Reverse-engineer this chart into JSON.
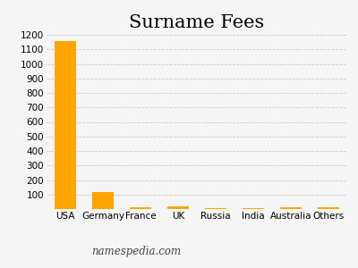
{
  "title": "Surname Fees",
  "categories": [
    "USA",
    "Germany",
    "France",
    "UK",
    "Russia",
    "India",
    "Australia",
    "Others"
  ],
  "values": [
    1155,
    120,
    15,
    17,
    8,
    6,
    10,
    13
  ],
  "bar_color": "#FFA500",
  "ylim": [
    0,
    1200
  ],
  "yticks": [
    100,
    200,
    300,
    400,
    500,
    600,
    700,
    800,
    900,
    1000,
    1100,
    1200
  ],
  "background_color": "#f5f5f5",
  "grid_color": "#cccccc",
  "title_fontsize": 15,
  "xlabel_fontsize": 7.5,
  "ylabel_fontsize": 7.5,
  "footer_text": "namespedia.com",
  "footer_fontsize": 8.5
}
